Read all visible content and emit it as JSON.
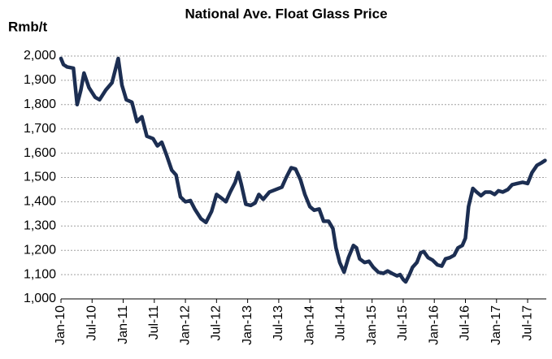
{
  "chart_data": {
    "type": "line",
    "title": "National Ave. Float Glass Price",
    "y_label": "Rmb/t",
    "x": [
      2010.0,
      2010.04,
      2010.1,
      2010.2,
      2010.26,
      2010.32,
      2010.37,
      2010.45,
      2010.55,
      2010.62,
      2010.72,
      2010.82,
      2010.92,
      2010.98,
      2011.05,
      2011.14,
      2011.22,
      2011.3,
      2011.38,
      2011.48,
      2011.55,
      2011.62,
      2011.7,
      2011.78,
      2011.85,
      2011.92,
      2012.0,
      2012.08,
      2012.15,
      2012.25,
      2012.33,
      2012.42,
      2012.5,
      2012.58,
      2012.65,
      2012.72,
      2012.8,
      2012.85,
      2012.9,
      2012.97,
      2013.05,
      2013.12,
      2013.18,
      2013.25,
      2013.35,
      2013.45,
      2013.55,
      2013.62,
      2013.7,
      2013.77,
      2013.85,
      2013.92,
      2014.0,
      2014.07,
      2014.15,
      2014.22,
      2014.3,
      2014.37,
      2014.42,
      2014.48,
      2014.55,
      2014.62,
      2014.7,
      2014.75,
      2014.8,
      2014.88,
      2014.95,
      2015.02,
      2015.1,
      2015.18,
      2015.25,
      2015.32,
      2015.4,
      2015.45,
      2015.5,
      2015.54,
      2015.6,
      2015.65,
      2015.72,
      2015.78,
      2015.83,
      2015.9,
      2015.97,
      2016.05,
      2016.12,
      2016.18,
      2016.25,
      2016.32,
      2016.38,
      2016.45,
      2016.5,
      2016.55,
      2016.62,
      2016.68,
      2016.75,
      2016.82,
      2016.9,
      2016.97,
      2017.03,
      2017.1,
      2017.18,
      2017.25,
      2017.33,
      2017.42,
      2017.5,
      2017.57,
      2017.65,
      2017.72,
      2017.78
    ],
    "series": [
      {
        "name": "National Ave. Float Glass Price",
        "color": "#1c2e52",
        "values": [
          1990,
          1965,
          1955,
          1950,
          1800,
          1860,
          1930,
          1870,
          1830,
          1820,
          1860,
          1890,
          1990,
          1880,
          1820,
          1810,
          1730,
          1750,
          1670,
          1660,
          1630,
          1645,
          1590,
          1530,
          1510,
          1420,
          1400,
          1405,
          1370,
          1330,
          1315,
          1360,
          1430,
          1415,
          1400,
          1440,
          1480,
          1520,
          1470,
          1390,
          1385,
          1395,
          1430,
          1410,
          1440,
          1450,
          1460,
          1500,
          1540,
          1535,
          1490,
          1430,
          1380,
          1365,
          1370,
          1320,
          1320,
          1290,
          1210,
          1150,
          1110,
          1170,
          1220,
          1210,
          1165,
          1150,
          1155,
          1130,
          1110,
          1105,
          1115,
          1105,
          1095,
          1100,
          1080,
          1070,
          1100,
          1130,
          1150,
          1190,
          1195,
          1170,
          1160,
          1140,
          1135,
          1165,
          1170,
          1180,
          1210,
          1220,
          1250,
          1380,
          1455,
          1440,
          1425,
          1440,
          1440,
          1430,
          1445,
          1440,
          1450,
          1470,
          1475,
          1480,
          1475,
          1520,
          1550,
          1560,
          1570
        ]
      }
    ],
    "xlim": [
      2010,
      2017.8
    ],
    "xticks": [
      {
        "value": 2010,
        "label": "Jan-10"
      },
      {
        "value": 2010.5,
        "label": "Jul-10"
      },
      {
        "value": 2011,
        "label": "Jan-11"
      },
      {
        "value": 2011.5,
        "label": "Jul-11"
      },
      {
        "value": 2012,
        "label": "Jan-12"
      },
      {
        "value": 2012.5,
        "label": "Jul-12"
      },
      {
        "value": 2013,
        "label": "Jan-13"
      },
      {
        "value": 2013.5,
        "label": "Jul-13"
      },
      {
        "value": 2014,
        "label": "Jan-14"
      },
      {
        "value": 2014.5,
        "label": "Jul-14"
      },
      {
        "value": 2015,
        "label": "Jan-15"
      },
      {
        "value": 2015.5,
        "label": "Jul-15"
      },
      {
        "value": 2016,
        "label": "Jan-16"
      },
      {
        "value": 2016.5,
        "label": "Jul-16"
      },
      {
        "value": 2017,
        "label": "Jan-17"
      },
      {
        "value": 2017.5,
        "label": "Jul-17"
      }
    ],
    "ylim": [
      1000,
      2000
    ],
    "yticks": [
      {
        "value": 1000,
        "label": "1,000"
      },
      {
        "value": 1100,
        "label": "1,100"
      },
      {
        "value": 1200,
        "label": "1,200"
      },
      {
        "value": 1300,
        "label": "1,300"
      },
      {
        "value": 1400,
        "label": "1,400"
      },
      {
        "value": 1500,
        "label": "1,500"
      },
      {
        "value": 1600,
        "label": "1,600"
      },
      {
        "value": 1700,
        "label": "1,700"
      },
      {
        "value": 1800,
        "label": "1,800"
      },
      {
        "value": 1900,
        "label": "1,900"
      },
      {
        "value": 2000,
        "label": "2,000"
      }
    ],
    "grid": true
  }
}
